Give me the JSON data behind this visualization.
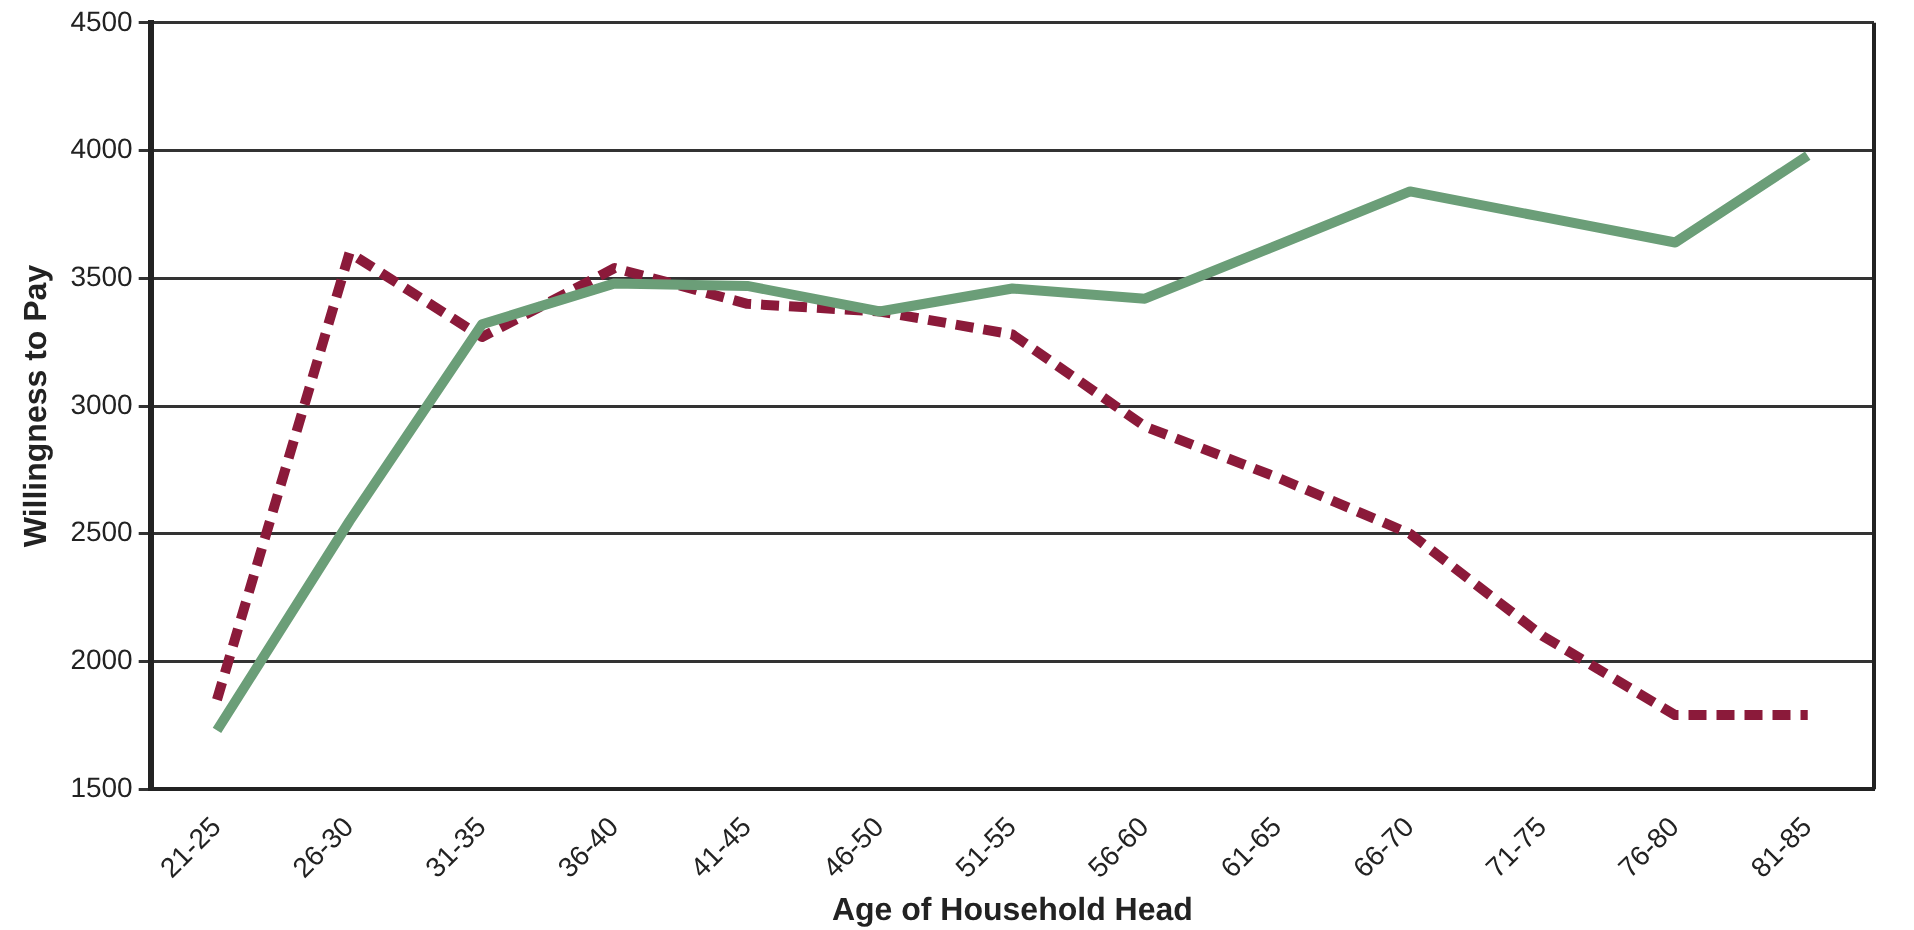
{
  "chart_data": {
    "type": "line",
    "xlabel": "Age of Household Head",
    "ylabel": "Willingness to Pay",
    "categories": [
      "21-25",
      "26-30",
      "31-35",
      "36-40",
      "41-45",
      "46-50",
      "51-55",
      "56-60",
      "61-65",
      "66-70",
      "71-75",
      "76-80",
      "81-85"
    ],
    "series": [
      {
        "color": "#6b9e78",
        "line_style": "solid",
        "values": [
          1730,
          2550,
          3320,
          3480,
          3470,
          3370,
          3460,
          3420,
          3630,
          3840,
          3740,
          3640,
          3980
        ]
      },
      {
        "color": "#8b1a3a",
        "line_style": "dashed",
        "values": [
          1850,
          3600,
          3270,
          3540,
          3400,
          3370,
          3280,
          2920,
          2720,
          2500,
          2100,
          1790,
          1790
        ]
      }
    ],
    "ylim": [
      1500,
      4500
    ],
    "yticks": [
      1500,
      2000,
      2500,
      3000,
      3500,
      4000,
      4500
    ],
    "grid": "y",
    "legend": false,
    "marker": "none"
  }
}
